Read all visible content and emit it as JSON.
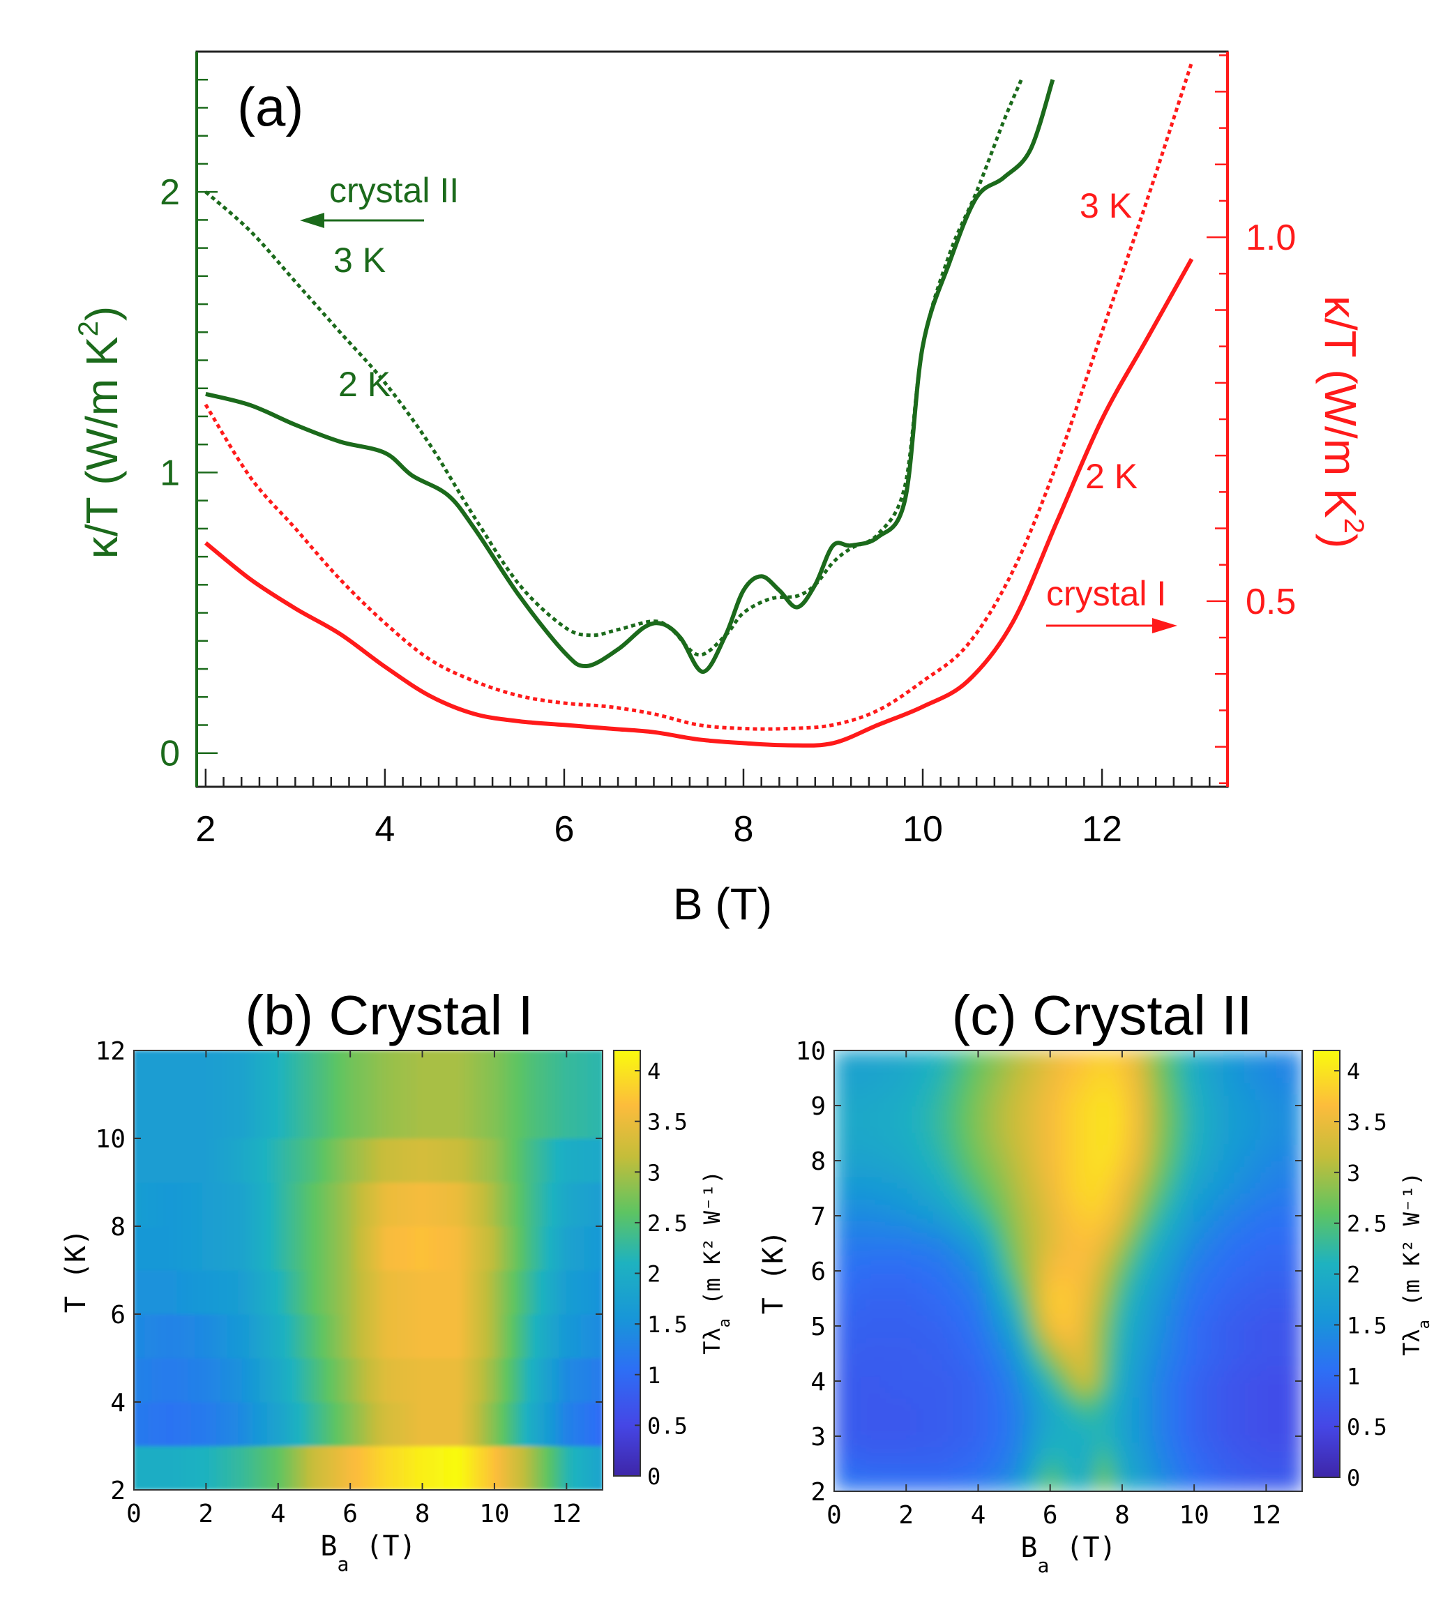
{
  "chart_data": [
    {
      "panel": "a",
      "type": "line",
      "label": "(a)",
      "xlabel": "B (T)",
      "xlim": [
        1.9,
        13.4
      ],
      "xticks": [
        2,
        4,
        6,
        8,
        10,
        12
      ],
      "left_axis": {
        "label": "κ/T (W/m K",
        "label_sup": "2",
        "label_end": ")",
        "color": "#1b6a1b",
        "ylim": [
          -0.12,
          2.5
        ],
        "ticks": [
          0,
          1,
          2
        ]
      },
      "right_axis": {
        "label": "κ/T (W/m K",
        "label_sup": "2",
        "label_end": ")",
        "color": "#ff1a1a",
        "ylim": [
          0.245,
          1.255
        ],
        "ticks": [
          0.5,
          1.0
        ],
        "tick_labels": [
          "0.5",
          "1.0"
        ]
      },
      "annotations": {
        "crystal2": "crystal II",
        "crystal1": "crystal I",
        "g3k": "3 K",
        "g2k": "2 K",
        "r3k": "3 K",
        "r2k": "2 K"
      },
      "series": [
        {
          "name": "crystal II 3 K",
          "axis": "left",
          "style": "dotted",
          "color": "#1b6a1b",
          "x": [
            2,
            2.5,
            3,
            3.5,
            4,
            4.5,
            5,
            5.5,
            6,
            6.3,
            6.6,
            7,
            7.2,
            7.5,
            7.8,
            8,
            8.3,
            8.6,
            8.8,
            9,
            9.2,
            9.5,
            9.8,
            10,
            10.3,
            10.6,
            10.9,
            11.1
          ],
          "y": [
            2.0,
            1.86,
            1.68,
            1.5,
            1.32,
            1.1,
            0.84,
            0.6,
            0.45,
            0.42,
            0.44,
            0.47,
            0.44,
            0.35,
            0.42,
            0.5,
            0.55,
            0.56,
            0.6,
            0.68,
            0.73,
            0.78,
            0.95,
            1.45,
            1.78,
            2.0,
            2.25,
            2.4
          ]
        },
        {
          "name": "crystal II 2 K",
          "axis": "left",
          "style": "solid",
          "color": "#1b6a1b",
          "x": [
            2,
            2.5,
            3,
            3.5,
            4,
            4.3,
            4.7,
            5,
            5.5,
            6,
            6.25,
            6.6,
            6.9,
            7.1,
            7.3,
            7.55,
            7.8,
            8,
            8.2,
            8.4,
            8.6,
            8.8,
            9,
            9.2,
            9.5,
            9.8,
            10,
            10.3,
            10.6,
            10.9,
            11.2,
            11.45
          ],
          "y": [
            1.28,
            1.24,
            1.17,
            1.11,
            1.07,
            0.99,
            0.92,
            0.8,
            0.56,
            0.36,
            0.31,
            0.37,
            0.45,
            0.46,
            0.41,
            0.29,
            0.42,
            0.58,
            0.63,
            0.58,
            0.52,
            0.6,
            0.74,
            0.74,
            0.77,
            0.9,
            1.45,
            1.75,
            1.98,
            2.05,
            2.15,
            2.4
          ]
        },
        {
          "name": "crystal I 3 K",
          "axis": "right",
          "style": "dotted",
          "color": "#ff1a1a",
          "x": [
            2,
            2.5,
            3,
            3.5,
            4,
            4.5,
            5,
            5.5,
            6,
            6.5,
            7,
            7.5,
            8,
            8.5,
            9,
            9.5,
            10,
            10.5,
            11,
            11.5,
            12,
            12.5,
            13
          ],
          "y": [
            0.77,
            0.67,
            0.6,
            0.53,
            0.47,
            0.42,
            0.39,
            0.37,
            0.36,
            0.355,
            0.345,
            0.33,
            0.325,
            0.325,
            0.33,
            0.35,
            0.39,
            0.44,
            0.54,
            0.69,
            0.87,
            1.05,
            1.24
          ]
        },
        {
          "name": "crystal I 2 K",
          "axis": "right",
          "style": "solid",
          "color": "#ff1a1a",
          "x": [
            2,
            2.5,
            3,
            3.5,
            4,
            4.5,
            5,
            5.5,
            6,
            6.5,
            7,
            7.5,
            8,
            8.5,
            9,
            9.5,
            10,
            10.5,
            11,
            11.5,
            12,
            12.5,
            13
          ],
          "y": [
            0.58,
            0.53,
            0.49,
            0.455,
            0.41,
            0.37,
            0.345,
            0.335,
            0.33,
            0.325,
            0.32,
            0.31,
            0.305,
            0.302,
            0.305,
            0.33,
            0.355,
            0.39,
            0.47,
            0.61,
            0.75,
            0.86,
            0.97
          ]
        }
      ]
    },
    {
      "panel": "b",
      "type": "heatmap",
      "title": "(b) Crystal I",
      "xlabel": "B",
      "xlabel_sub": "a",
      "xlabel_end": " (T)",
      "ylabel": "T (K)",
      "xlim": [
        0,
        13
      ],
      "ylim": [
        2,
        12
      ],
      "xticks": [
        0,
        2,
        4,
        6,
        8,
        10,
        12
      ],
      "yticks": [
        2,
        4,
        6,
        8,
        10,
        12
      ],
      "colorbar": {
        "range": [
          0,
          4.2
        ],
        "ticks": [
          0,
          0.5,
          1,
          1.5,
          2,
          2.5,
          3,
          3.5,
          4
        ],
        "tick_labels": [
          "0",
          "0.5",
          "1",
          "1.5",
          "2",
          "2.5",
          "3",
          "3.5",
          "4"
        ],
        "label": "Tλ",
        "label_sub": "a",
        "label_end": " (m K² W⁻¹)"
      },
      "grid_x": [
        0,
        1,
        2,
        3,
        4,
        5,
        6,
        7,
        8,
        9,
        10,
        11,
        12,
        13
      ],
      "rows": [
        {
          "T": [
            2,
            3
          ],
          "values": [
            2.0,
            2.0,
            2.1,
            2.3,
            2.6,
            3.2,
            3.6,
            3.9,
            4.1,
            4.2,
            3.7,
            3.0,
            2.2,
            1.8
          ]
        },
        {
          "T": [
            3,
            4
          ],
          "values": [
            1.2,
            1.1,
            1.2,
            1.4,
            1.8,
            2.3,
            2.8,
            3.3,
            3.5,
            3.5,
            2.8,
            2.0,
            1.3,
            1.0
          ]
        },
        {
          "T": [
            4,
            5
          ],
          "values": [
            1.3,
            1.2,
            1.3,
            1.5,
            1.9,
            2.4,
            2.9,
            3.4,
            3.5,
            3.5,
            2.9,
            2.1,
            1.4,
            1.2
          ]
        },
        {
          "T": [
            5,
            6
          ],
          "values": [
            1.4,
            1.3,
            1.4,
            1.6,
            2.0,
            2.5,
            3.0,
            3.5,
            3.6,
            3.6,
            3.0,
            2.2,
            1.6,
            1.4
          ]
        },
        {
          "T": [
            6,
            7
          ],
          "values": [
            1.5,
            1.5,
            1.6,
            1.7,
            2.1,
            2.6,
            3.0,
            3.5,
            3.6,
            3.6,
            3.0,
            2.3,
            1.7,
            1.5
          ]
        },
        {
          "T": [
            7,
            8
          ],
          "values": [
            1.6,
            1.6,
            1.7,
            1.8,
            2.2,
            2.6,
            3.0,
            3.6,
            3.7,
            3.6,
            3.1,
            2.4,
            1.8,
            1.6
          ]
        },
        {
          "T": [
            8,
            9
          ],
          "values": [
            1.7,
            1.6,
            1.7,
            1.8,
            2.2,
            2.6,
            3.0,
            3.5,
            3.6,
            3.5,
            3.0,
            2.4,
            1.9,
            1.7
          ]
        },
        {
          "T": [
            9,
            10
          ],
          "values": [
            1.7,
            1.7,
            1.7,
            1.9,
            2.2,
            2.5,
            2.9,
            3.2,
            3.3,
            3.2,
            2.9,
            2.4,
            2.0,
            1.9
          ]
        },
        {
          "T": [
            10,
            12
          ],
          "values": [
            1.7,
            1.7,
            1.7,
            1.8,
            2.1,
            2.4,
            2.7,
            2.9,
            3.0,
            3.0,
            2.8,
            2.5,
            2.3,
            2.2
          ]
        }
      ]
    },
    {
      "panel": "c",
      "type": "heatmap",
      "title": "(c) Crystal II",
      "xlabel": "B",
      "xlabel_sub": "a",
      "xlabel_end": " (T)",
      "ylabel": "T (K)",
      "xlim": [
        0,
        13
      ],
      "ylim": [
        2,
        10
      ],
      "xticks": [
        0,
        2,
        4,
        6,
        8,
        10,
        12
      ],
      "yticks": [
        2,
        3,
        4,
        5,
        6,
        7,
        8,
        9,
        10
      ],
      "colorbar": {
        "range": [
          0,
          4.2
        ],
        "ticks": [
          0,
          0.5,
          1,
          1.5,
          2,
          2.5,
          3,
          3.5,
          4
        ],
        "tick_labels": [
          "0",
          "0.5",
          "1",
          "1.5",
          "2",
          "2.5",
          "3",
          "3.5",
          "4"
        ],
        "label": "Tλ",
        "label_sub": "a",
        "label_end": " (m K² W⁻¹)"
      },
      "grid_x": [
        0,
        1,
        2,
        3,
        4,
        5,
        6,
        6.5,
        7,
        7.5,
        8,
        8.5,
        9,
        10,
        11,
        12,
        13
      ],
      "grid_y": [
        2,
        2.5,
        3,
        3.5,
        4,
        4.5,
        5,
        5.5,
        6,
        6.5,
        7,
        7.5,
        8,
        8.5,
        9,
        9.5,
        10
      ],
      "values": [
        [
          1.2,
          1.15,
          1.1,
          1.1,
          1.2,
          1.5,
          2.8,
          2.2,
          1.9,
          3.0,
          2.0,
          1.8,
          1.5,
          1.1,
          0.9,
          0.8,
          0.8
        ],
        [
          1.0,
          0.9,
          0.9,
          0.9,
          1.0,
          1.3,
          2.3,
          2.1,
          1.9,
          2.6,
          1.9,
          1.7,
          1.4,
          1.0,
          0.8,
          0.7,
          0.7
        ],
        [
          0.8,
          0.75,
          0.75,
          0.8,
          0.9,
          1.2,
          2.0,
          2.0,
          2.0,
          2.2,
          1.8,
          1.6,
          1.3,
          0.9,
          0.7,
          0.6,
          0.6
        ],
        [
          0.8,
          0.75,
          0.75,
          0.8,
          0.9,
          1.2,
          1.9,
          2.1,
          2.4,
          2.2,
          1.8,
          1.6,
          1.3,
          0.9,
          0.7,
          0.6,
          0.6
        ],
        [
          0.8,
          0.75,
          0.8,
          0.8,
          0.9,
          1.3,
          2.2,
          2.8,
          3.4,
          2.6,
          1.9,
          1.6,
          1.3,
          0.9,
          0.7,
          0.6,
          0.6
        ],
        [
          0.85,
          0.8,
          0.8,
          0.85,
          1.0,
          1.5,
          2.9,
          3.4,
          3.4,
          2.7,
          2.0,
          1.7,
          1.4,
          1.0,
          0.8,
          0.7,
          0.7
        ],
        [
          0.9,
          0.85,
          0.85,
          0.9,
          1.1,
          1.8,
          3.6,
          3.8,
          3.4,
          2.8,
          2.1,
          1.8,
          1.5,
          1.0,
          0.8,
          0.7,
          0.7
        ],
        [
          1.0,
          0.9,
          0.9,
          1.0,
          1.2,
          2.2,
          3.8,
          3.8,
          3.5,
          3.0,
          2.3,
          1.9,
          1.6,
          1.1,
          0.9,
          0.8,
          0.8
        ],
        [
          1.1,
          1.0,
          1.0,
          1.1,
          1.4,
          2.6,
          3.6,
          3.7,
          3.6,
          3.2,
          2.6,
          2.1,
          1.8,
          1.2,
          1.0,
          0.9,
          0.9
        ],
        [
          1.2,
          1.2,
          1.2,
          1.3,
          1.7,
          2.8,
          3.4,
          3.6,
          3.7,
          3.5,
          3.0,
          2.4,
          2.0,
          1.4,
          1.1,
          1.0,
          1.0
        ],
        [
          1.4,
          1.4,
          1.5,
          1.7,
          2.2,
          2.9,
          3.4,
          3.7,
          3.8,
          3.8,
          3.4,
          2.8,
          2.3,
          1.6,
          1.3,
          1.1,
          1.1
        ],
        [
          1.6,
          1.6,
          1.7,
          2.0,
          2.5,
          3.0,
          3.5,
          3.8,
          3.9,
          3.9,
          3.6,
          3.1,
          2.6,
          1.8,
          1.5,
          1.3,
          1.2
        ],
        [
          1.8,
          1.8,
          1.9,
          2.2,
          2.7,
          3.1,
          3.6,
          3.8,
          3.9,
          4.0,
          3.8,
          3.4,
          2.8,
          2.0,
          1.6,
          1.4,
          1.3
        ],
        [
          1.9,
          1.9,
          2.0,
          2.3,
          2.8,
          3.2,
          3.6,
          3.8,
          3.9,
          4.0,
          3.9,
          3.5,
          2.9,
          2.1,
          1.7,
          1.5,
          1.4
        ],
        [
          1.9,
          1.9,
          2.0,
          2.3,
          2.8,
          3.2,
          3.6,
          3.8,
          3.9,
          4.0,
          3.9,
          3.5,
          2.9,
          2.1,
          1.7,
          1.5,
          1.4
        ],
        [
          1.8,
          1.8,
          1.9,
          2.2,
          2.7,
          3.1,
          3.5,
          3.7,
          3.8,
          3.9,
          3.8,
          3.4,
          2.8,
          2.0,
          1.6,
          1.4,
          1.3
        ],
        [
          1.8,
          1.8,
          1.9,
          2.1,
          2.6,
          3.0,
          3.4,
          3.6,
          3.7,
          3.8,
          3.7,
          3.3,
          2.7,
          2.0,
          1.6,
          1.4,
          1.3
        ]
      ]
    }
  ]
}
